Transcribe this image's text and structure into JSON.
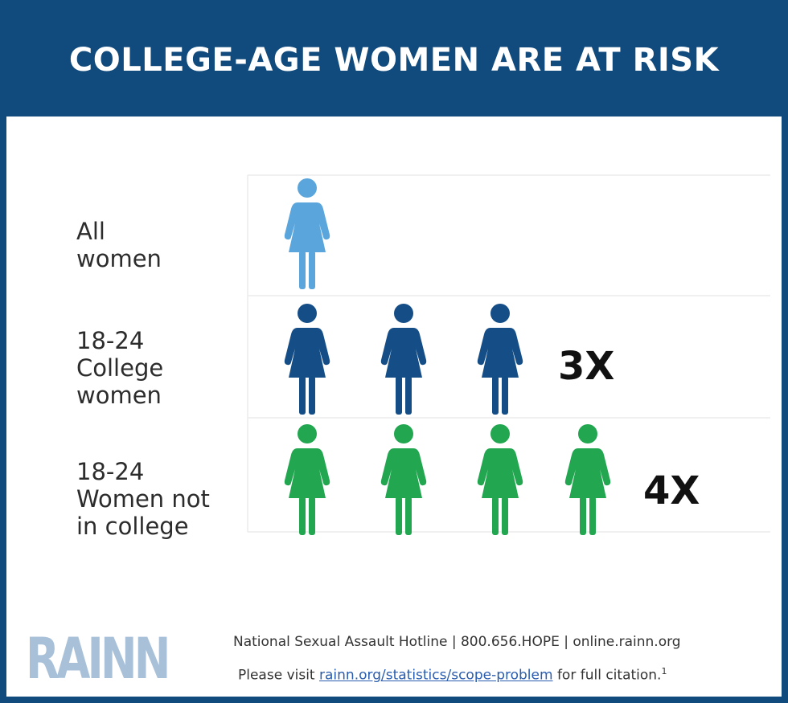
{
  "header": {
    "title": "COLLEGE-AGE WOMEN ARE AT RISK"
  },
  "chart_data": {
    "type": "pictograph",
    "title": "COLLEGE-AGE WOMEN ARE AT RISK",
    "categories": [
      "All\nwomen",
      "18-24\nCollege\nwomen",
      "18-24\nWomen not\nin college"
    ],
    "values": [
      1,
      3,
      4
    ],
    "labels": [
      "",
      "3X",
      "4X"
    ],
    "colors": [
      "#5aa6dc",
      "#154e86",
      "#22a650"
    ],
    "grid": true
  },
  "footer": {
    "logo": "RAINN",
    "hotline": "National Sexual Assault Hotline | 800.656.HOPE | online.rainn.org",
    "visit_prefix": "Please visit ",
    "visit_link": "rainn.org/statistics/scope-problem",
    "visit_suffix": " for full citation.",
    "footnote": "1"
  }
}
